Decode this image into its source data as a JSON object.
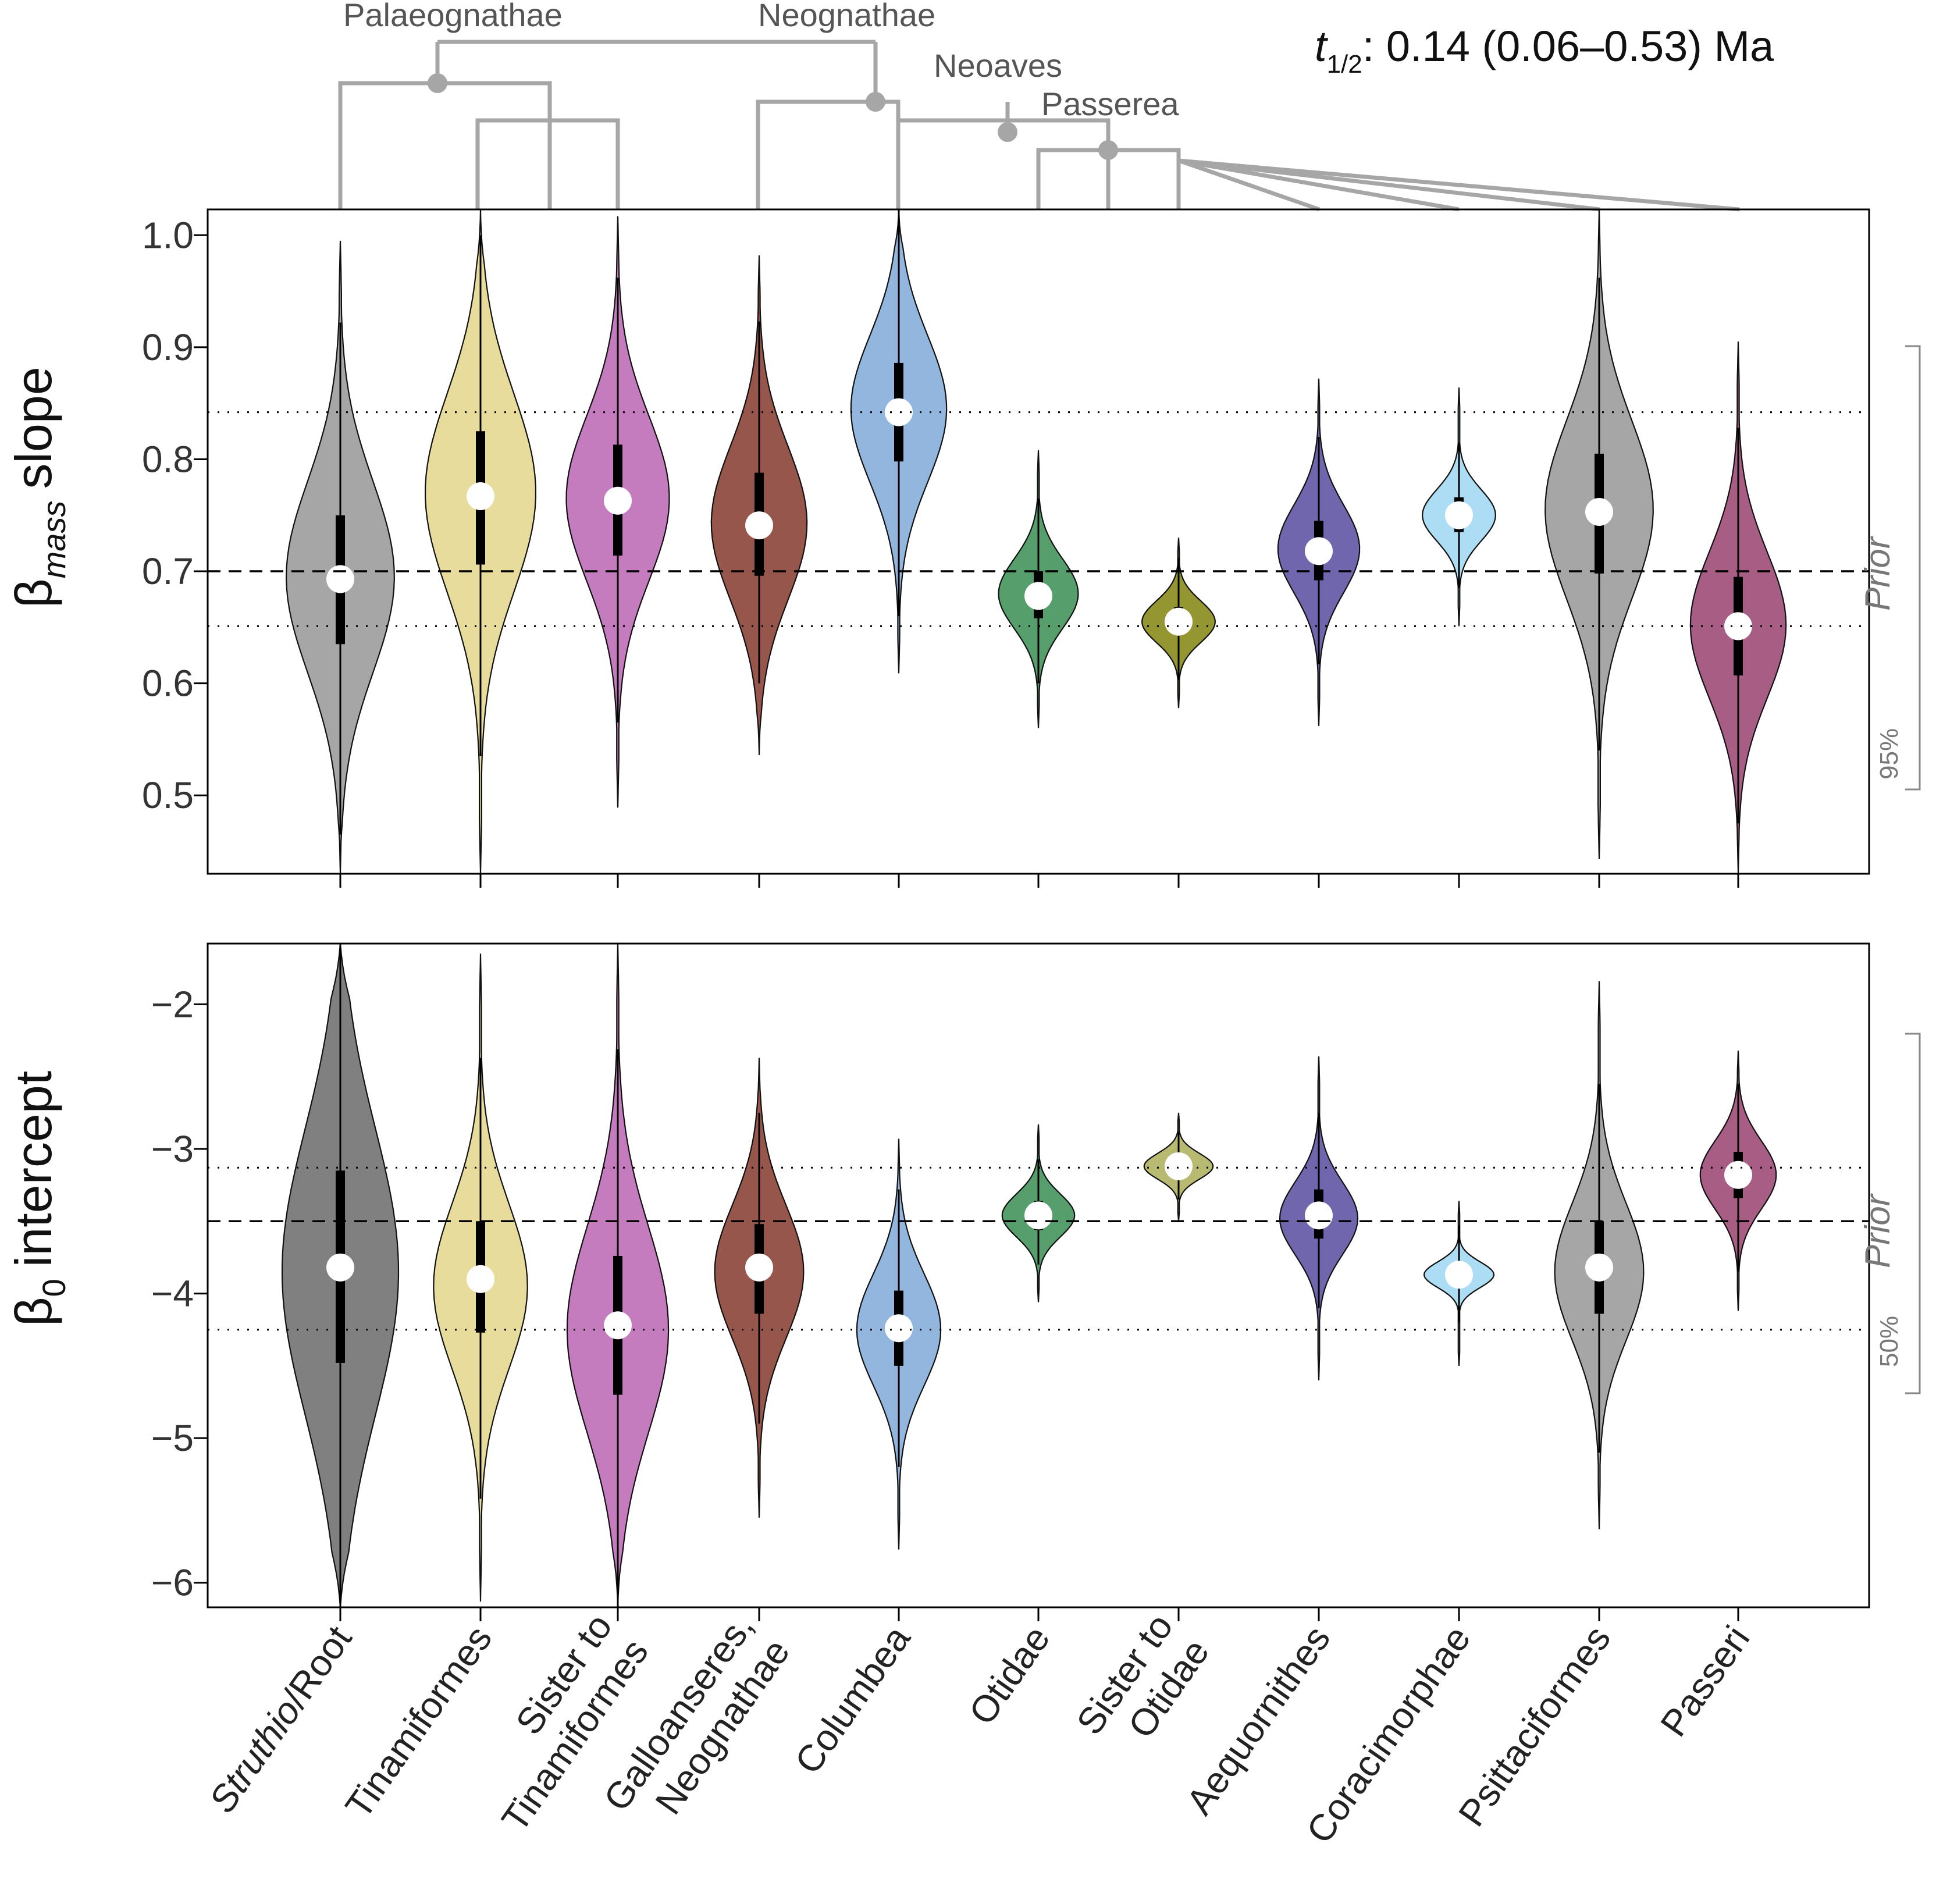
{
  "half_life": {
    "symbol": "t",
    "subscript": "1/2",
    "text": ": 0.14 (0.06–0.53)  Ma"
  },
  "phylogeny": {
    "clades": [
      "Palaeognathae",
      "Neognathae",
      "Neoaves",
      "Passerea"
    ]
  },
  "prior_label": "Prior",
  "colors": {
    "Struthio/Root": "#a6a6a6",
    "Struthio/Root_intercept": "#808080",
    "Tinamiformes": "#e8dc9c",
    "Sister to Tinamiformes": "#c47cbe",
    "Galloanseres, Neognathae": "#96564b",
    "Columbea": "#93b6de",
    "Otidae": "#579e6d",
    "Sister to Otidae": "#949632",
    "Sister to Otidae_intercept": "#b9ba71",
    "Aequornithes": "#7066ad",
    "Coracimorphae": "#acddf4",
    "Psittaciformes": "#a6a6a6",
    "Passeri": "#a85e84",
    "tree": "#a6a6a6"
  },
  "chart_data": [
    {
      "type": "violin",
      "title": "",
      "ylabel": {
        "symbol": "β",
        "subscript": "mass",
        "text": "slope"
      },
      "ylim": [
        0.43,
        1.023
      ],
      "yticks": [
        "0.5",
        "0.6",
        "0.7",
        "0.8",
        "0.9",
        "1.0"
      ],
      "prior": {
        "mean": 0.7,
        "interval_low": 0.651,
        "interval_high": 0.842,
        "interval_label": "95%"
      },
      "categories": [
        "Struthio/Root",
        "Tinamiformes",
        "Sister to Tinamiformes",
        "Galloanseres, Neognathae",
        "Columbea",
        "Otidae",
        "Sister to Otidae",
        "Aequornithes",
        "Coracimorphae",
        "Psittaciformes",
        "Passeri"
      ],
      "series": [
        {
          "name": "Struthio/Root",
          "median": 0.693,
          "q1": 0.635,
          "q3": 0.75,
          "lo": 0.465,
          "hi": 0.922,
          "min": 0.43,
          "max": 0.995,
          "mode": 0.695,
          "spread": 0.095
        },
        {
          "name": "Tinamiformes",
          "median": 0.767,
          "q1": 0.706,
          "q3": 0.825,
          "lo": 0.535,
          "hi": 1.0,
          "min": 0.43,
          "max": 1.023,
          "mode": 0.77,
          "spread": 0.1
        },
        {
          "name": "Sister to Tinamiformes",
          "median": 0.763,
          "q1": 0.714,
          "q3": 0.813,
          "lo": 0.565,
          "hi": 0.962,
          "min": 0.489,
          "max": 1.017,
          "mode": 0.765,
          "spread": 0.085
        },
        {
          "name": "Galloanseres, Neognathae",
          "median": 0.741,
          "q1": 0.696,
          "q3": 0.788,
          "lo": 0.6,
          "hi": 0.923,
          "min": 0.536,
          "max": 0.982,
          "mode": 0.743,
          "spread": 0.07
        },
        {
          "name": "Columbea",
          "median": 0.842,
          "q1": 0.798,
          "q3": 0.886,
          "lo": 0.66,
          "hi": 1.023,
          "min": 0.609,
          "max": 1.023,
          "mode": 0.845,
          "spread": 0.07
        },
        {
          "name": "Otidae",
          "median": 0.678,
          "q1": 0.658,
          "q3": 0.7,
          "lo": 0.6,
          "hi": 0.765,
          "min": 0.56,
          "max": 0.808,
          "mode": 0.68,
          "spread": 0.038
        },
        {
          "name": "Sister to Otidae",
          "median": 0.655,
          "q1": 0.643,
          "q3": 0.668,
          "lo": 0.603,
          "hi": 0.712,
          "min": 0.578,
          "max": 0.73,
          "mode": 0.655,
          "spread": 0.025
        },
        {
          "name": "Aequornithes",
          "median": 0.718,
          "q1": 0.692,
          "q3": 0.745,
          "lo": 0.617,
          "hi": 0.82,
          "min": 0.562,
          "max": 0.872,
          "mode": 0.72,
          "spread": 0.042
        },
        {
          "name": "Coracimorphae",
          "median": 0.75,
          "q1": 0.735,
          "q3": 0.766,
          "lo": 0.685,
          "hi": 0.815,
          "min": 0.651,
          "max": 0.864,
          "mode": 0.75,
          "spread": 0.025
        },
        {
          "name": "Psittaciformes",
          "median": 0.753,
          "q1": 0.698,
          "q3": 0.805,
          "lo": 0.54,
          "hi": 0.962,
          "min": 0.443,
          "max": 1.023,
          "mode": 0.755,
          "spread": 0.095
        },
        {
          "name": "Passeri",
          "median": 0.651,
          "q1": 0.607,
          "q3": 0.695,
          "lo": 0.475,
          "hi": 0.828,
          "min": 0.43,
          "max": 0.905,
          "mode": 0.652,
          "spread": 0.07
        }
      ]
    },
    {
      "type": "violin",
      "title": "",
      "ylabel": {
        "symbol": "β",
        "subscript": "0",
        "text": "intercept"
      },
      "ylim": [
        -6.17,
        -1.58
      ],
      "yticks": [
        "−2",
        "−3",
        "−4",
        "−5",
        "−6"
      ],
      "prior": {
        "mean": -3.5,
        "interval_low": -4.25,
        "interval_high": -3.13,
        "interval_label": "50%"
      },
      "categories": [
        "Struthio/Root",
        "Tinamiformes",
        "Sister to Tinamiformes",
        "Galloanseres, Neognathae",
        "Columbea",
        "Otidae",
        "Sister to Otidae",
        "Aequornithes",
        "Coracimorphae",
        "Psittaciformes",
        "Passeri"
      ],
      "series": [
        {
          "name": "Struthio/Root",
          "median": -3.82,
          "q1": -4.48,
          "q3": -3.15,
          "lo": -6.17,
          "hi": -1.58,
          "min": -6.17,
          "max": -1.58,
          "mode": -3.85,
          "spread": 1.05
        },
        {
          "name": "Tinamiformes",
          "median": -3.9,
          "q1": -4.27,
          "q3": -3.5,
          "lo": -5.42,
          "hi": -2.37,
          "min": -6.13,
          "max": -1.65,
          "mode": -3.95,
          "spread": 0.6
        },
        {
          "name": "Sister to Tinamiformes",
          "median": -4.22,
          "q1": -4.7,
          "q3": -3.74,
          "lo": -6.17,
          "hi": -2.31,
          "min": -6.17,
          "max": -1.58,
          "mode": -4.25,
          "spread": 0.75
        },
        {
          "name": "Galloanseres, Neognathae",
          "median": -3.82,
          "q1": -4.14,
          "q3": -3.52,
          "lo": -4.9,
          "hi": -2.75,
          "min": -5.55,
          "max": -2.37,
          "mode": -3.85,
          "spread": 0.5
        },
        {
          "name": "Columbea",
          "median": -4.24,
          "q1": -4.5,
          "q3": -3.98,
          "lo": -5.2,
          "hi": -3.28,
          "min": -5.77,
          "max": -2.93,
          "mode": -4.25,
          "spread": 0.4
        },
        {
          "name": "Otidae",
          "median": -3.46,
          "q1": -3.56,
          "q3": -3.36,
          "lo": -3.8,
          "hi": -3.07,
          "min": -4.06,
          "max": -2.83,
          "mode": -3.46,
          "spread": 0.17
        },
        {
          "name": "Sister to Otidae",
          "median": -3.12,
          "q1": -3.18,
          "q3": -3.06,
          "lo": -3.35,
          "hi": -2.88,
          "min": -3.5,
          "max": -2.75,
          "mode": -3.12,
          "spread": 0.1
        },
        {
          "name": "Aequornithes",
          "median": -3.46,
          "q1": -3.62,
          "q3": -3.28,
          "lo": -4.1,
          "hi": -2.75,
          "min": -4.6,
          "max": -2.36,
          "mode": -3.48,
          "spread": 0.28
        },
        {
          "name": "Coracimorphae",
          "median": -3.87,
          "q1": -3.93,
          "q3": -3.81,
          "lo": -4.2,
          "hi": -3.53,
          "min": -4.5,
          "max": -3.36,
          "mode": -3.87,
          "spread": 0.12
        },
        {
          "name": "Psittaciformes",
          "median": -3.82,
          "q1": -4.14,
          "q3": -3.5,
          "lo": -5.1,
          "hi": -2.55,
          "min": -5.63,
          "max": -1.84,
          "mode": -3.85,
          "spread": 0.5
        },
        {
          "name": "Passeri",
          "median": -3.18,
          "q1": -3.34,
          "q3": -3.02,
          "lo": -3.85,
          "hi": -2.55,
          "min": -4.12,
          "max": -2.32,
          "mode": -3.18,
          "spread": 0.24
        }
      ]
    }
  ]
}
